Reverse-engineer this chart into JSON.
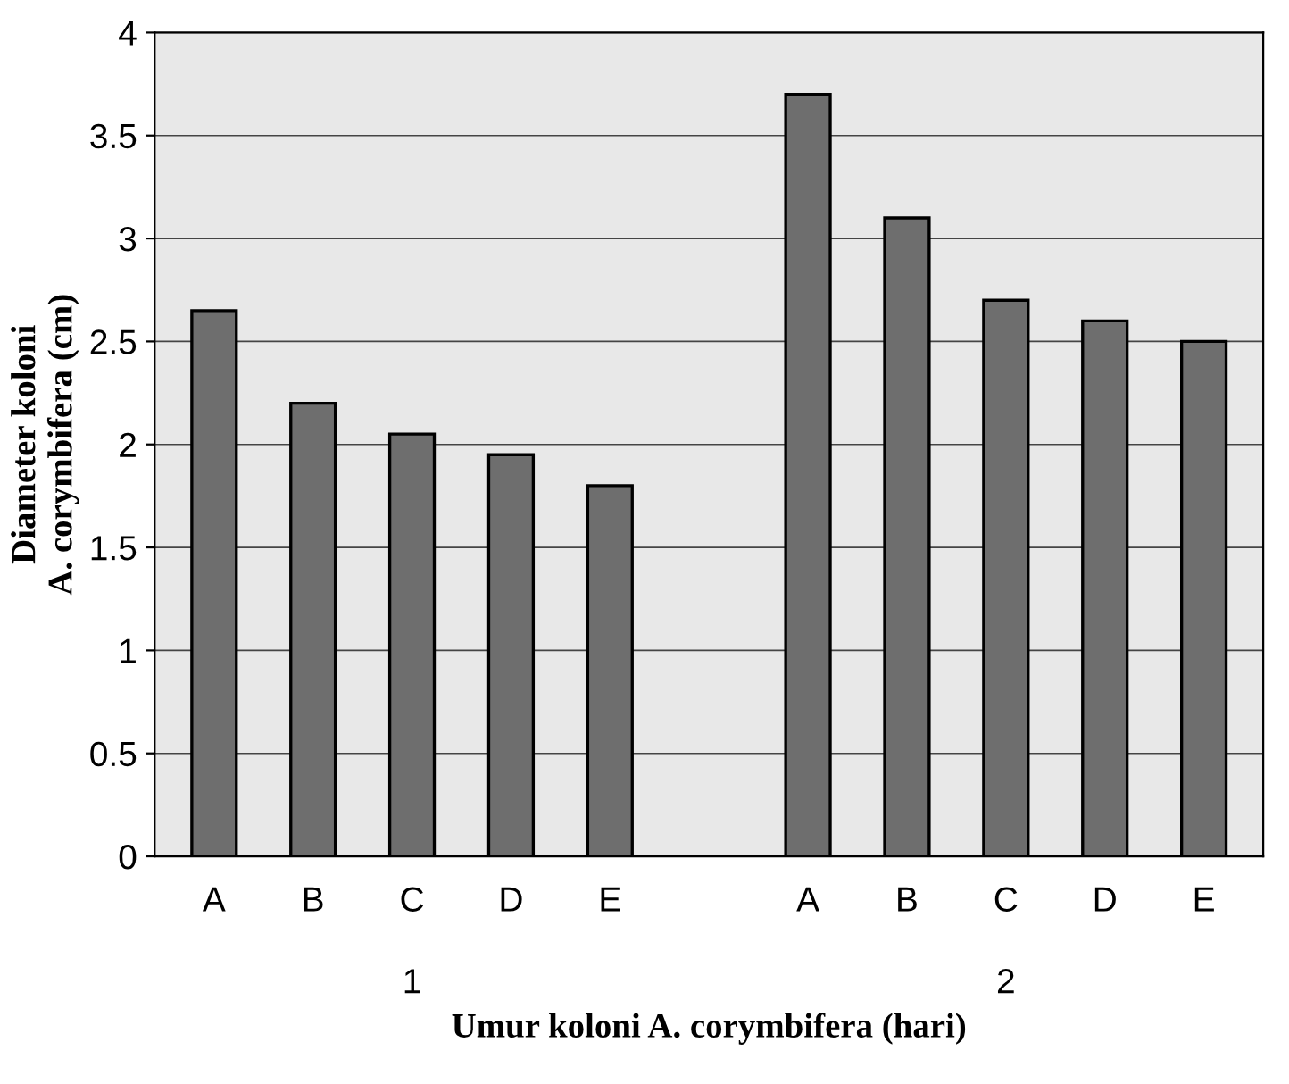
{
  "chart_data": {
    "type": "bar",
    "xlabel": "Umur koloni A. corymbifera (hari)",
    "ylabel": "Diameter koloni\nA. corymbifera (cm)",
    "categories": [
      "A",
      "B",
      "C",
      "D",
      "E",
      null,
      "A",
      "B",
      "C",
      "D",
      "E"
    ],
    "values": [
      2.65,
      2.2,
      2.05,
      1.95,
      1.8,
      null,
      3.7,
      3.1,
      2.7,
      2.6,
      2.5
    ],
    "color": "#6e6e6e",
    "annotations": [
      "1",
      "2"
    ],
    "ylim": [
      0,
      4
    ],
    "yticks": [
      0,
      0.5,
      1,
      1.5,
      2,
      2.5,
      3,
      3.5,
      4
    ],
    "grid": "y",
    "legend": false
  }
}
